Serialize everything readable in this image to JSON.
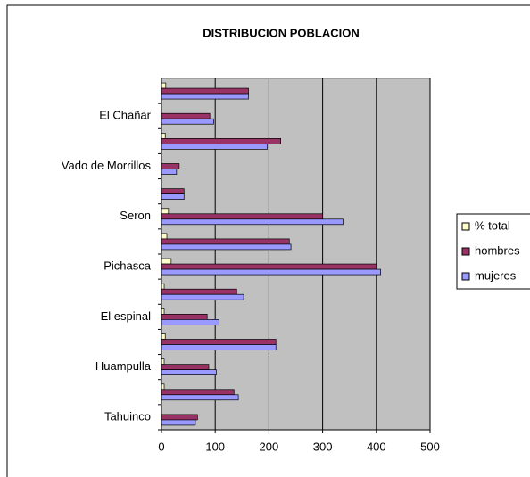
{
  "chart_data": {
    "type": "hbar",
    "title": "DISTRIBUCION POBLACION",
    "categories": [
      "Tahuinco",
      null,
      "Huampulla",
      null,
      "El espinal",
      null,
      "Pichasca",
      null,
      "Seron",
      null,
      "Vado de Morrillos",
      null,
      "El Chañar",
      null
    ],
    "series": [
      {
        "name": "% total",
        "color": "#ffffcc",
        "values": [
          0,
          5,
          5,
          7,
          5,
          5,
          18,
          10,
          13,
          0,
          0,
          7,
          0,
          8
        ]
      },
      {
        "name": "hombres",
        "color": "#993366",
        "values": [
          67,
          135,
          88,
          213,
          85,
          140,
          400,
          238,
          300,
          42,
          33,
          222,
          90,
          162
        ]
      },
      {
        "name": "mujeres",
        "color": "#9999ff",
        "values": [
          63,
          143,
          102,
          213,
          107,
          153,
          408,
          241,
          338,
          42,
          28,
          197,
          97,
          162
        ]
      }
    ],
    "xlim": [
      0,
      500
    ],
    "xticks": [
      0,
      100,
      200,
      300,
      400,
      500
    ],
    "grid": true,
    "legend": "right"
  }
}
